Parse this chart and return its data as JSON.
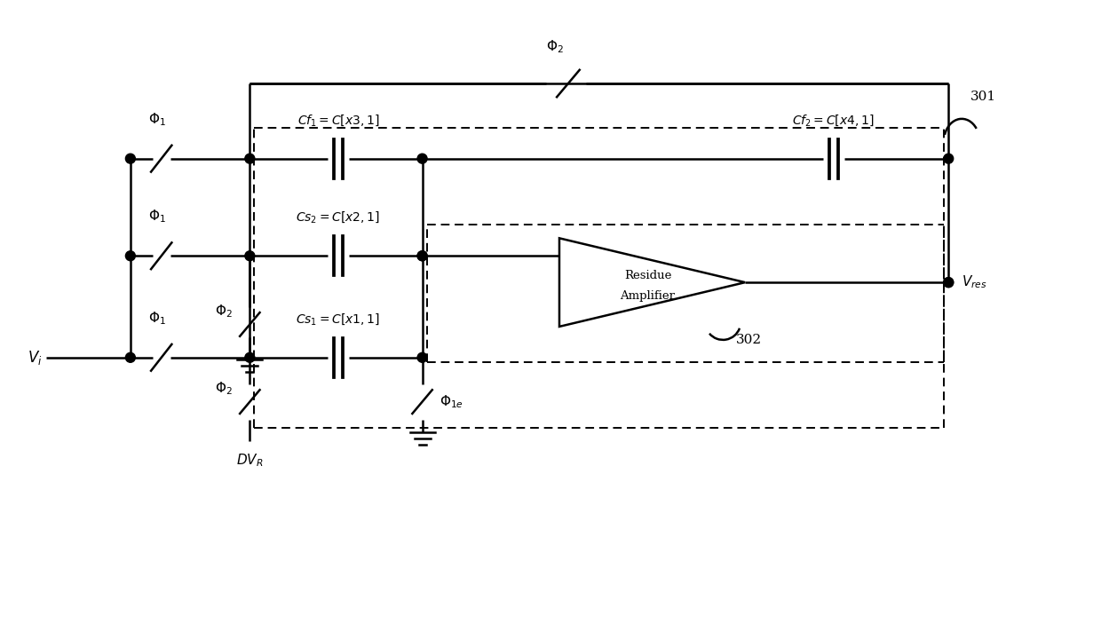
{
  "bg_color": "#ffffff",
  "line_color": "#000000",
  "lw": 1.8,
  "lw_thick": 2.2,
  "fig_width": 12.4,
  "fig_height": 7.03,
  "dpi": 100,
  "font_size": 11,
  "font_size_small": 10,
  "x_lim": [
    0,
    124
  ],
  "y_lim": [
    0,
    70.3
  ]
}
